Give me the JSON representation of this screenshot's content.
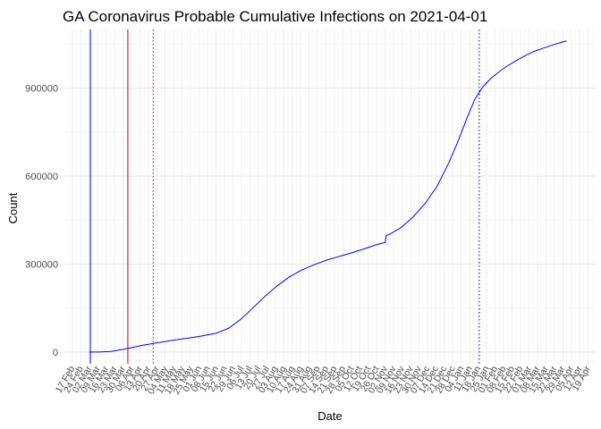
{
  "chart_data": {
    "type": "line",
    "title": "GA Coronavirus Probable Cumulative Infections on 2021-04-01",
    "xlabel": "Date",
    "ylabel": "Count",
    "grid": true,
    "x_type": "date",
    "xlim": [
      "2020-02-09",
      "2021-04-26"
    ],
    "ylim": [
      -40000,
      1100000
    ],
    "y_ticks": [
      0,
      300000,
      600000,
      900000
    ],
    "y_tick_labels": [
      "0",
      "300000",
      "600000",
      "900000"
    ],
    "x_ticks": [
      "2020-02-17",
      "2020-02-24",
      "2020-03-02",
      "2020-03-09",
      "2020-03-16",
      "2020-03-23",
      "2020-03-30",
      "2020-04-06",
      "2020-04-13",
      "2020-04-20",
      "2020-04-27",
      "2020-05-04",
      "2020-05-11",
      "2020-05-18",
      "2020-05-25",
      "2020-06-01",
      "2020-06-08",
      "2020-06-15",
      "2020-06-22",
      "2020-06-29",
      "2020-07-06",
      "2020-07-13",
      "2020-07-20",
      "2020-07-27",
      "2020-08-03",
      "2020-08-10",
      "2020-08-17",
      "2020-08-24",
      "2020-08-31",
      "2020-09-07",
      "2020-09-14",
      "2020-09-21",
      "2020-09-28",
      "2020-10-05",
      "2020-10-12",
      "2020-10-19",
      "2020-10-26",
      "2020-11-02",
      "2020-11-09",
      "2020-11-16",
      "2020-11-23",
      "2020-11-30",
      "2020-12-07",
      "2020-12-14",
      "2020-12-21",
      "2020-12-28",
      "2021-01-04",
      "2021-01-11",
      "2021-01-18",
      "2021-01-25",
      "2021-02-01",
      "2021-02-08",
      "2021-02-15",
      "2021-02-22",
      "2021-03-01",
      "2021-03-08",
      "2021-03-15",
      "2021-03-22",
      "2021-03-29",
      "2021-04-05",
      "2021-04-12",
      "2021-04-19"
    ],
    "x_tick_labels": [
      "17 Feb",
      "24 Feb",
      "02 Mar",
      "09 Mar",
      "16 Mar",
      "23 Mar",
      "30 Mar",
      "06 Apr",
      "13 Apr",
      "20 Apr",
      "27 Apr",
      "04 May",
      "11 May",
      "18 May",
      "25 May",
      "01 Jun",
      "08 Jun",
      "15 Jun",
      "22 Jun",
      "29 Jun",
      "06 Jul",
      "13 Jul",
      "20 Jul",
      "27 Jul",
      "03 Aug",
      "10 Aug",
      "17 Aug",
      "24 Aug",
      "31 Aug",
      "07 Sep",
      "14 Sep",
      "21 Sep",
      "28 Sep",
      "05 Oct",
      "12 Oct",
      "19 Oct",
      "26 Oct",
      "02 Nov",
      "09 Nov",
      "16 Nov",
      "23 Nov",
      "30 Nov",
      "07 Dec",
      "14 Dec",
      "21 Dec",
      "28 Dec",
      "04 Jan",
      "11 Jan",
      "18 Jan",
      "25 Jan",
      "01 Feb",
      "08 Feb",
      "15 Feb",
      "22 Feb",
      "01 Mar",
      "08 Mar",
      "15 Mar",
      "22 Mar",
      "29 Mar",
      "05 Apr",
      "12 Apr",
      "19 Apr"
    ],
    "series": [
      {
        "color": "#0000ff",
        "x": [
          "2020-03-02",
          "2020-03-10",
          "2020-03-20",
          "2020-03-31",
          "2020-04-15",
          "2020-05-01",
          "2020-05-15",
          "2020-06-01",
          "2020-06-15",
          "2020-06-25",
          "2020-07-05",
          "2020-07-15",
          "2020-07-25",
          "2020-08-05",
          "2020-08-15",
          "2020-08-25",
          "2020-09-05",
          "2020-09-15",
          "2020-09-25",
          "2020-10-05",
          "2020-10-15",
          "2020-10-25",
          "2020-11-02",
          "2020-11-03",
          "2020-11-05",
          "2020-11-15",
          "2020-11-25",
          "2020-12-05",
          "2020-12-15",
          "2020-12-25",
          "2021-01-01",
          "2021-01-08",
          "2021-01-15",
          "2021-01-22",
          "2021-01-29",
          "2021-02-05",
          "2021-02-12",
          "2021-02-19",
          "2021-02-26",
          "2021-03-05",
          "2021-03-12",
          "2021-03-19",
          "2021-03-26",
          "2021-04-01"
        ],
        "y": [
          0,
          0,
          2000,
          10000,
          23000,
          34000,
          43000,
          53000,
          64000,
          80000,
          110000,
          148000,
          188000,
          227000,
          257000,
          280000,
          299000,
          314000,
          326000,
          338000,
          351000,
          365000,
          374000,
          398000,
          400000,
          424000,
          460000,
          506000,
          565000,
          648000,
          715000,
          790000,
          860000,
          905000,
          935000,
          958000,
          978000,
          995000,
          1011000,
          1025000,
          1035000,
          1045000,
          1054000,
          1061000
        ]
      }
    ],
    "vlines": [
      {
        "x": "2020-03-03",
        "color": "#0000ff",
        "style": "solid"
      },
      {
        "x": "2020-04-03",
        "color": "#cc0000",
        "style": "solid"
      },
      {
        "x": "2020-04-24",
        "color": "#cc0000",
        "style": "dotted"
      },
      {
        "x": "2021-01-19",
        "color": "#000080",
        "style": "dotted"
      }
    ]
  }
}
